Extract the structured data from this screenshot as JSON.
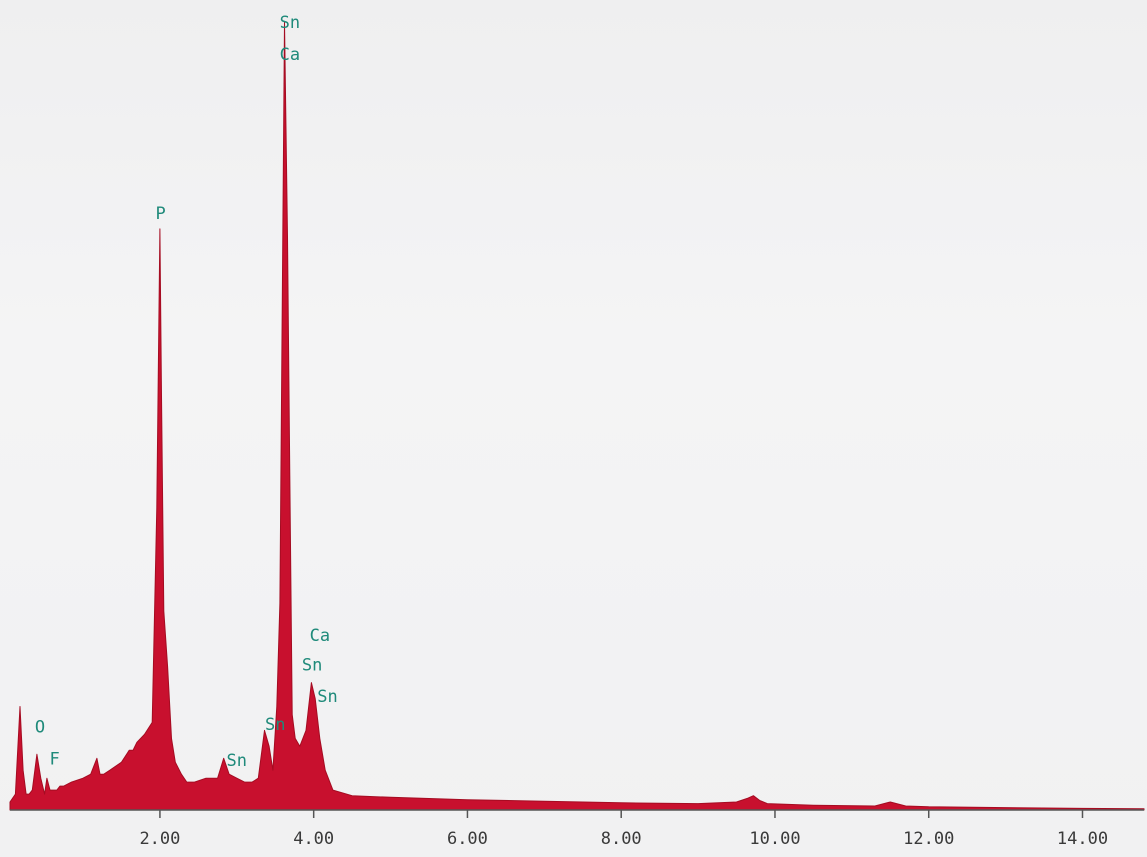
{
  "chart_data": {
    "type": "area",
    "title": "",
    "xlabel": "",
    "ylabel": "",
    "xlim": [
      0.05,
      14.8
    ],
    "ylim": [
      0,
      100
    ],
    "grid": false,
    "legend": "none",
    "colors": {
      "fill": "#c8102e",
      "stroke": "#a50c22",
      "axis": "#555555",
      "label": "#1f8a7a"
    },
    "x_ticks": [
      "2.00",
      "4.00",
      "6.00",
      "8.00",
      "10.00",
      "12.00",
      "14.00"
    ],
    "x_tick_values": [
      2,
      4,
      6,
      8,
      10,
      12,
      14
    ],
    "series": [
      {
        "x": [
          0.05,
          0.12,
          0.18,
          0.22,
          0.26,
          0.3,
          0.34,
          0.4,
          0.45,
          0.5,
          0.53,
          0.57,
          0.62,
          0.66,
          0.7,
          0.75,
          0.85,
          1.0,
          1.1,
          1.18,
          1.22,
          1.27,
          1.35,
          1.5,
          1.6,
          1.65,
          1.7,
          1.8,
          1.9,
          1.96,
          2.0,
          2.02,
          2.05,
          2.1,
          2.15,
          2.2,
          2.28,
          2.35,
          2.45,
          2.6,
          2.75,
          2.83,
          2.9,
          3.0,
          3.1,
          3.2,
          3.28,
          3.36,
          3.42,
          3.47,
          3.52,
          3.56,
          3.62,
          3.66,
          3.69,
          3.72,
          3.76,
          3.82,
          3.9,
          3.97,
          4.02,
          4.08,
          4.15,
          4.25,
          4.5,
          5.0,
          6.0,
          7.0,
          8.0,
          9.0,
          9.5,
          9.65,
          9.72,
          9.8,
          9.9,
          10.5,
          11.3,
          11.5,
          11.7,
          12.0,
          13.0,
          14.0,
          14.8
        ],
        "values": [
          1,
          2,
          13,
          5,
          2,
          2,
          2.5,
          7,
          4,
          2,
          4,
          2.5,
          2.5,
          2.5,
          3,
          3,
          3.5,
          4,
          4.5,
          6.5,
          4.5,
          4.5,
          5,
          6,
          7.5,
          7.5,
          8.5,
          9.5,
          11,
          38,
          73,
          52,
          25,
          18,
          9,
          6,
          4.5,
          3.5,
          3.5,
          4,
          4,
          6.5,
          4.5,
          4,
          3.5,
          3.5,
          4,
          10,
          8,
          5,
          13,
          26,
          99,
          72,
          42,
          12,
          9,
          8,
          10,
          16,
          14,
          9,
          5,
          2.5,
          1.8,
          1.6,
          1.3,
          1.1,
          0.9,
          0.8,
          1,
          1.5,
          1.8,
          1.2,
          0.8,
          0.6,
          0.5,
          1,
          0.5,
          0.4,
          0.3,
          0.2,
          0.15
        ]
      }
    ],
    "peak_labels": [
      {
        "text": "Sn",
        "x": 3.69,
        "y": 100
      },
      {
        "text": "Ca",
        "x": 3.69,
        "y": 96
      },
      {
        "text": "P",
        "x": 2.01,
        "y": 76
      },
      {
        "text": "O",
        "x": 0.44,
        "y": 11.5
      },
      {
        "text": "F",
        "x": 0.63,
        "y": 7.5
      },
      {
        "text": "Sn",
        "x": 3.0,
        "y": 7.3
      },
      {
        "text": "Sn",
        "x": 3.5,
        "y": 11.8
      },
      {
        "text": "Ca",
        "x": 4.08,
        "y": 23
      },
      {
        "text": "Sn",
        "x": 3.98,
        "y": 19.3
      },
      {
        "text": "Sn",
        "x": 4.18,
        "y": 15.3
      }
    ]
  }
}
